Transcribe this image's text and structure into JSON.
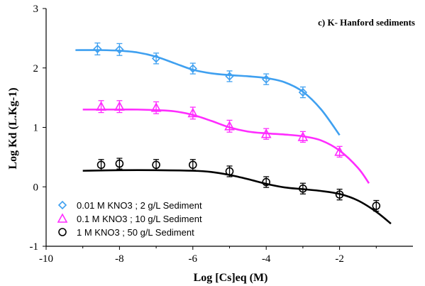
{
  "chart_data": {
    "type": "scatter",
    "title": "c) K- Hanford sediments",
    "xlabel": "Log [Cs]eq (M)",
    "ylabel": "Log Kd (L.Kg-1)",
    "xlim": [
      -10,
      0
    ],
    "ylim": [
      -1,
      3
    ],
    "x_ticks": [
      -10,
      -8,
      -6,
      -4,
      -2
    ],
    "y_ticks": [
      -1,
      0,
      1,
      2,
      3
    ],
    "grid": false,
    "legend_position": "bottom-left",
    "series": [
      {
        "name": "0.01 M KNO3 ;  2 g/L Sediment",
        "marker": "diamond",
        "color": "#3fa0f0",
        "x": [
          -8.6,
          -8.0,
          -7.0,
          -6.0,
          -5.0,
          -4.0,
          -3.0
        ],
        "y": [
          2.32,
          2.31,
          2.16,
          1.99,
          1.86,
          1.81,
          1.59
        ],
        "error": [
          0.1,
          0.1,
          0.09,
          0.09,
          0.09,
          0.09,
          0.09
        ],
        "fit_x": [
          -9.2,
          -8.5,
          -8.0,
          -7.5,
          -7.0,
          -6.5,
          -6.0,
          -5.5,
          -5.0,
          -4.5,
          -4.0,
          -3.5,
          -3.0,
          -2.5,
          -2.0
        ],
        "fit_y": [
          2.3,
          2.3,
          2.29,
          2.26,
          2.19,
          2.08,
          1.97,
          1.91,
          1.88,
          1.86,
          1.83,
          1.76,
          1.6,
          1.3,
          0.87
        ]
      },
      {
        "name": "0.1 M KNO3 ;  10 g/L Sediment",
        "marker": "triangle",
        "color": "#ff2cff",
        "x": [
          -8.5,
          -8.0,
          -7.0,
          -6.0,
          -5.0,
          -4.0,
          -3.0,
          -2.0
        ],
        "y": [
          1.35,
          1.35,
          1.33,
          1.24,
          1.02,
          0.89,
          0.84,
          0.59
        ],
        "error": [
          0.1,
          0.1,
          0.1,
          0.1,
          0.1,
          0.09,
          0.09,
          0.09
        ],
        "fit_x": [
          -9.0,
          -8.5,
          -8.0,
          -7.5,
          -7.0,
          -6.5,
          -6.0,
          -5.5,
          -5.0,
          -4.5,
          -4.0,
          -3.5,
          -3.0,
          -2.5,
          -2.0,
          -1.5,
          -1.2
        ],
        "fit_y": [
          1.3,
          1.3,
          1.3,
          1.3,
          1.29,
          1.27,
          1.21,
          1.11,
          1.0,
          0.93,
          0.9,
          0.88,
          0.85,
          0.78,
          0.61,
          0.32,
          0.06
        ]
      },
      {
        "name": "1 M KNO3 ;  50 g/L Sediment",
        "marker": "circle",
        "color": "#000000",
        "x": [
          -8.5,
          -8.0,
          -7.0,
          -6.0,
          -5.0,
          -4.0,
          -3.0,
          -2.0,
          -1.0
        ],
        "y": [
          0.37,
          0.39,
          0.37,
          0.37,
          0.26,
          0.08,
          -0.03,
          -0.13,
          -0.32
        ],
        "error": [
          0.09,
          0.09,
          0.09,
          0.09,
          0.09,
          0.09,
          0.09,
          0.09,
          0.09
        ],
        "fit_x": [
          -9.0,
          -8.0,
          -7.0,
          -6.0,
          -5.5,
          -5.0,
          -4.5,
          -4.0,
          -3.5,
          -3.0,
          -2.5,
          -2.0,
          -1.5,
          -1.0,
          -0.6
        ],
        "fit_y": [
          0.27,
          0.28,
          0.28,
          0.27,
          0.25,
          0.2,
          0.13,
          0.05,
          -0.01,
          -0.04,
          -0.07,
          -0.12,
          -0.23,
          -0.42,
          -0.62
        ]
      }
    ]
  }
}
